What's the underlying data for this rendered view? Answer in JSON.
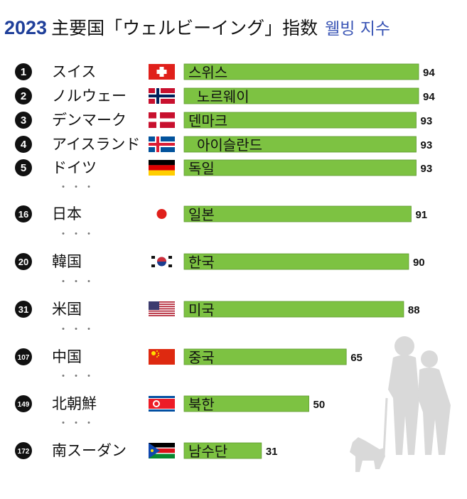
{
  "title": {
    "year": "2023",
    "main": "主要国「ウェルビーイング」指数",
    "korean": "웰빙 지수"
  },
  "chart_data": {
    "type": "bar",
    "orientation": "horizontal",
    "categories": [
      "スイス",
      "ノルウェー",
      "デンマーク",
      "アイスランド",
      "ドイツ",
      "日本",
      "韓国",
      "米国",
      "中国",
      "北朝鮮",
      "南スーダン"
    ],
    "korean_labels": [
      "스위스",
      "노르웨이",
      "덴마크",
      "아이슬란드",
      "독일",
      "일본",
      "한국",
      "미국",
      "중국",
      "북한",
      "남수단"
    ],
    "ranks": [
      1,
      2,
      3,
      4,
      5,
      16,
      20,
      31,
      107,
      149,
      172
    ],
    "values": [
      94,
      94,
      93,
      93,
      93,
      91,
      90,
      88,
      65,
      50,
      31
    ],
    "flags": [
      "switzerland-flag",
      "norway-flag",
      "denmark-flag",
      "iceland-flag",
      "germany-flag",
      "japan-flag",
      "south-korea-flag",
      "usa-flag",
      "china-flag",
      "north-korea-flag",
      "south-sudan-flag"
    ],
    "bar_color": "#7dc242",
    "gap_marker": "・・・"
  },
  "colors": {
    "title_blue": "#1f3f9a",
    "korean_blue": "#3a55b5",
    "rank_circle": "#111111",
    "silhouette": "#d9d9d9"
  }
}
